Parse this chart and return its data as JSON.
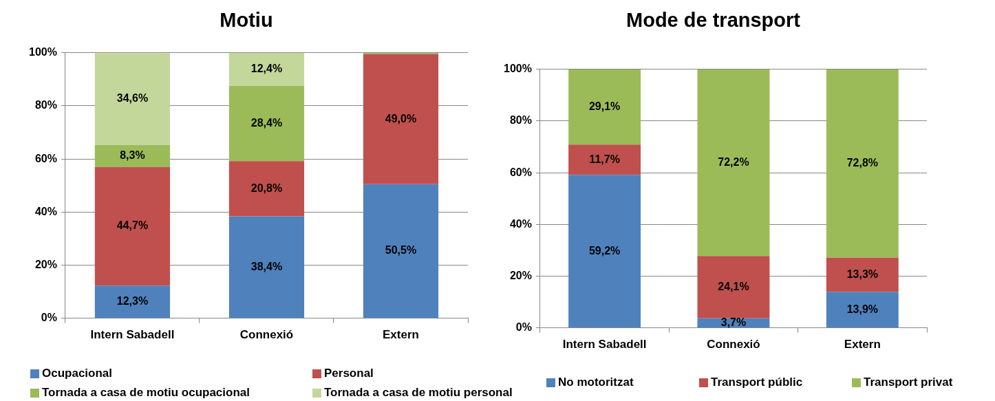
{
  "chart_data": [
    {
      "type": "bar",
      "title": "Motiu",
      "categories": [
        "Intern Sabadell",
        "Connexió",
        "Extern"
      ],
      "stacked": true,
      "ylim": [
        0,
        100
      ],
      "yticks": [
        {
          "value": 0,
          "label": "0%"
        },
        {
          "value": 20,
          "label": "20%"
        },
        {
          "value": 40,
          "label": "40%"
        },
        {
          "value": 60,
          "label": "60%"
        },
        {
          "value": 80,
          "label": "80%"
        },
        {
          "value": 100,
          "label": "100%"
        }
      ],
      "grid": "y",
      "legend": "bottom",
      "series": [
        {
          "name": "Ocupacional",
          "color": "#4f81bd",
          "values": [
            12.3,
            38.4,
            50.5
          ],
          "value_labels": [
            "12,3%",
            "38,4%",
            "50,5%"
          ]
        },
        {
          "name": "Personal",
          "color": "#c0504d",
          "values": [
            44.7,
            20.8,
            49.0
          ],
          "value_labels": [
            "44,7%",
            "20,8%",
            "49,0%"
          ]
        },
        {
          "name": "Tornada a casa de motiu ocupacional",
          "color": "#9bbb59",
          "values": [
            8.3,
            28.4,
            0.5
          ],
          "value_labels": [
            "8,3%",
            "28,4%",
            null
          ]
        },
        {
          "name": "Tornada a casa de motiu personal",
          "color": "#c4d79b",
          "values": [
            34.6,
            12.4,
            0
          ],
          "value_labels": [
            "34,6%",
            "12,4%",
            null
          ]
        }
      ]
    },
    {
      "type": "bar",
      "title": "Mode de transport",
      "categories": [
        "Intern Sabadell",
        "Connexió",
        "Extern"
      ],
      "stacked": true,
      "ylim": [
        0,
        100
      ],
      "yticks": [
        {
          "value": 0,
          "label": "0%"
        },
        {
          "value": 20,
          "label": "20%"
        },
        {
          "value": 40,
          "label": "40%"
        },
        {
          "value": 60,
          "label": "60%"
        },
        {
          "value": 80,
          "label": "80%"
        },
        {
          "value": 100,
          "label": "100%"
        }
      ],
      "grid": "y",
      "legend": "bottom",
      "series": [
        {
          "name": "No motoritzat",
          "color": "#4f81bd",
          "values": [
            59.2,
            3.7,
            13.9
          ],
          "value_labels": [
            "59,2%",
            "3,7%",
            "13,9%"
          ]
        },
        {
          "name": "Transport públic",
          "color": "#c0504d",
          "values": [
            11.7,
            24.1,
            13.3
          ],
          "value_labels": [
            "11,7%",
            "24,1%",
            "13,3%"
          ]
        },
        {
          "name": "Transport privat",
          "color": "#9bbb59",
          "values": [
            29.1,
            72.2,
            72.8
          ],
          "value_labels": [
            "29,1%",
            "72,2%",
            "72,8%"
          ]
        }
      ]
    }
  ]
}
